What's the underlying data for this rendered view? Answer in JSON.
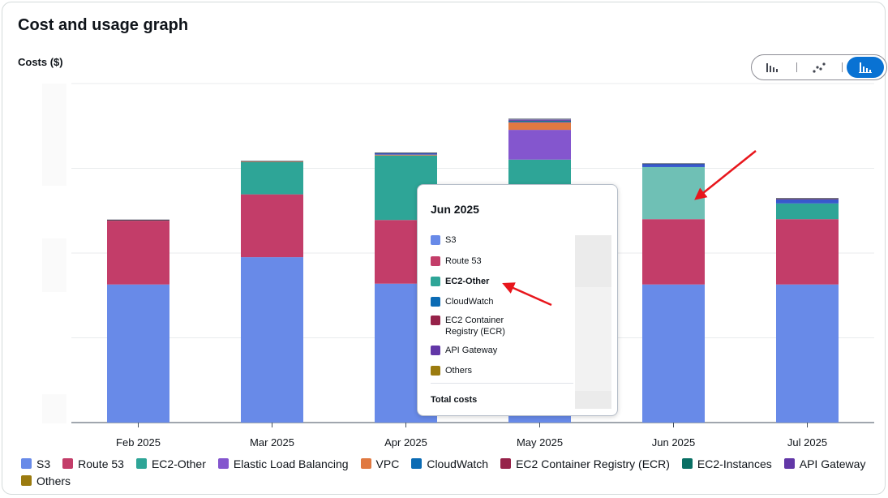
{
  "header": {
    "title": "Cost and usage graph",
    "y_axis_label": "Costs ($)"
  },
  "view_toggle": [
    {
      "name": "bar-chart-icon",
      "active": false
    },
    {
      "name": "line-chart-icon",
      "active": false
    },
    {
      "name": "stacked-bar-chart-icon",
      "active": true
    }
  ],
  "chart_data": {
    "type": "bar",
    "stacked": true,
    "categories": [
      "Feb 2025",
      "Mar 2025",
      "Apr 2025",
      "May 2025",
      "Jun 2025",
      "Jul 2025"
    ],
    "ylim": [
      0,
      4.1
    ],
    "grid": true,
    "legend_position": "bottom",
    "series": [
      {
        "name": "S3",
        "color": "#688ae8",
        "values": [
          1.67,
          2.0,
          1.68,
          1.68,
          1.67,
          1.67
        ]
      },
      {
        "name": "Route 53",
        "color": "#c33d69",
        "values": [
          0.77,
          0.76,
          0.77,
          0.77,
          0.79,
          0.79
        ]
      },
      {
        "name": "EC2-Other",
        "color": "#2ea597",
        "values": [
          0.0,
          0.39,
          0.78,
          0.73,
          0.63,
          0.19
        ]
      },
      {
        "name": "Elastic Load Balancing",
        "color": "#8456ce",
        "values": [
          0.0,
          0.0,
          0.0,
          0.36,
          0.0,
          0.0
        ]
      },
      {
        "name": "VPC",
        "color": "#e07941",
        "values": [
          0.0,
          0.01,
          0.01,
          0.09,
          0.0,
          0.0
        ]
      },
      {
        "name": "CloudWatch",
        "color": "#3759ce",
        "values": [
          0.0,
          0.0,
          0.02,
          0.01,
          0.04,
          0.05
        ]
      },
      {
        "name": "EC2 Container Registry (ECR)",
        "color": "#962249",
        "values": [
          0.01,
          0.0,
          0.0,
          0.0,
          0.0,
          0.01
        ]
      },
      {
        "name": "EC2-Instances",
        "color": "#096f64",
        "values": [
          0.0,
          0.0,
          0.0,
          0.01,
          0.0,
          0.0
        ]
      },
      {
        "name": "API Gateway",
        "color": "#6237a7",
        "values": [
          0.0,
          0.0,
          0.0,
          0.01,
          0.0,
          0.0
        ]
      },
      {
        "name": "Others",
        "color": "#a783e1",
        "values": [
          0.0,
          0.0,
          0.0,
          0.01,
          0.0,
          0.0
        ]
      }
    ],
    "legend": [
      {
        "label": "S3",
        "color": "#688ae8"
      },
      {
        "label": "Route 53",
        "color": "#c33d69"
      },
      {
        "label": "EC2-Other",
        "color": "#2ea597"
      },
      {
        "label": "Elastic Load Balancing",
        "color": "#8456ce"
      },
      {
        "label": "VPC",
        "color": "#e07941"
      },
      {
        "label": "CloudWatch",
        "color": "#0b6bb4"
      },
      {
        "label": "EC2 Container Registry (ECR)",
        "color": "#962249"
      },
      {
        "label": "EC2-Instances",
        "color": "#096f64"
      },
      {
        "label": "API Gateway",
        "color": "#6237a7"
      },
      {
        "label": "Others",
        "color": "#9b7b0f"
      }
    ],
    "highlight": {
      "category": "Jun 2025",
      "series": "EC2-Other",
      "color": "#6fc0b5"
    }
  },
  "tooltip": {
    "title": "Jun 2025",
    "rows": [
      {
        "label": "S3",
        "color": "#688ae8",
        "bold": false
      },
      {
        "label": "Route 53",
        "color": "#c33d69",
        "bold": false
      },
      {
        "label": "EC2-Other",
        "color": "#2ea597",
        "bold": true
      },
      {
        "label": "CloudWatch",
        "color": "#0b6bb4",
        "bold": false
      },
      {
        "label": "EC2 Container Registry (ECR)",
        "color": "#962249",
        "bold": false
      },
      {
        "label": "API Gateway",
        "color": "#6237a7",
        "bold": false
      },
      {
        "label": "Others",
        "color": "#9b7b0f",
        "bold": false
      }
    ],
    "total_label": "Total costs"
  },
  "annotations": {
    "arrow_color": "#e8161c"
  }
}
